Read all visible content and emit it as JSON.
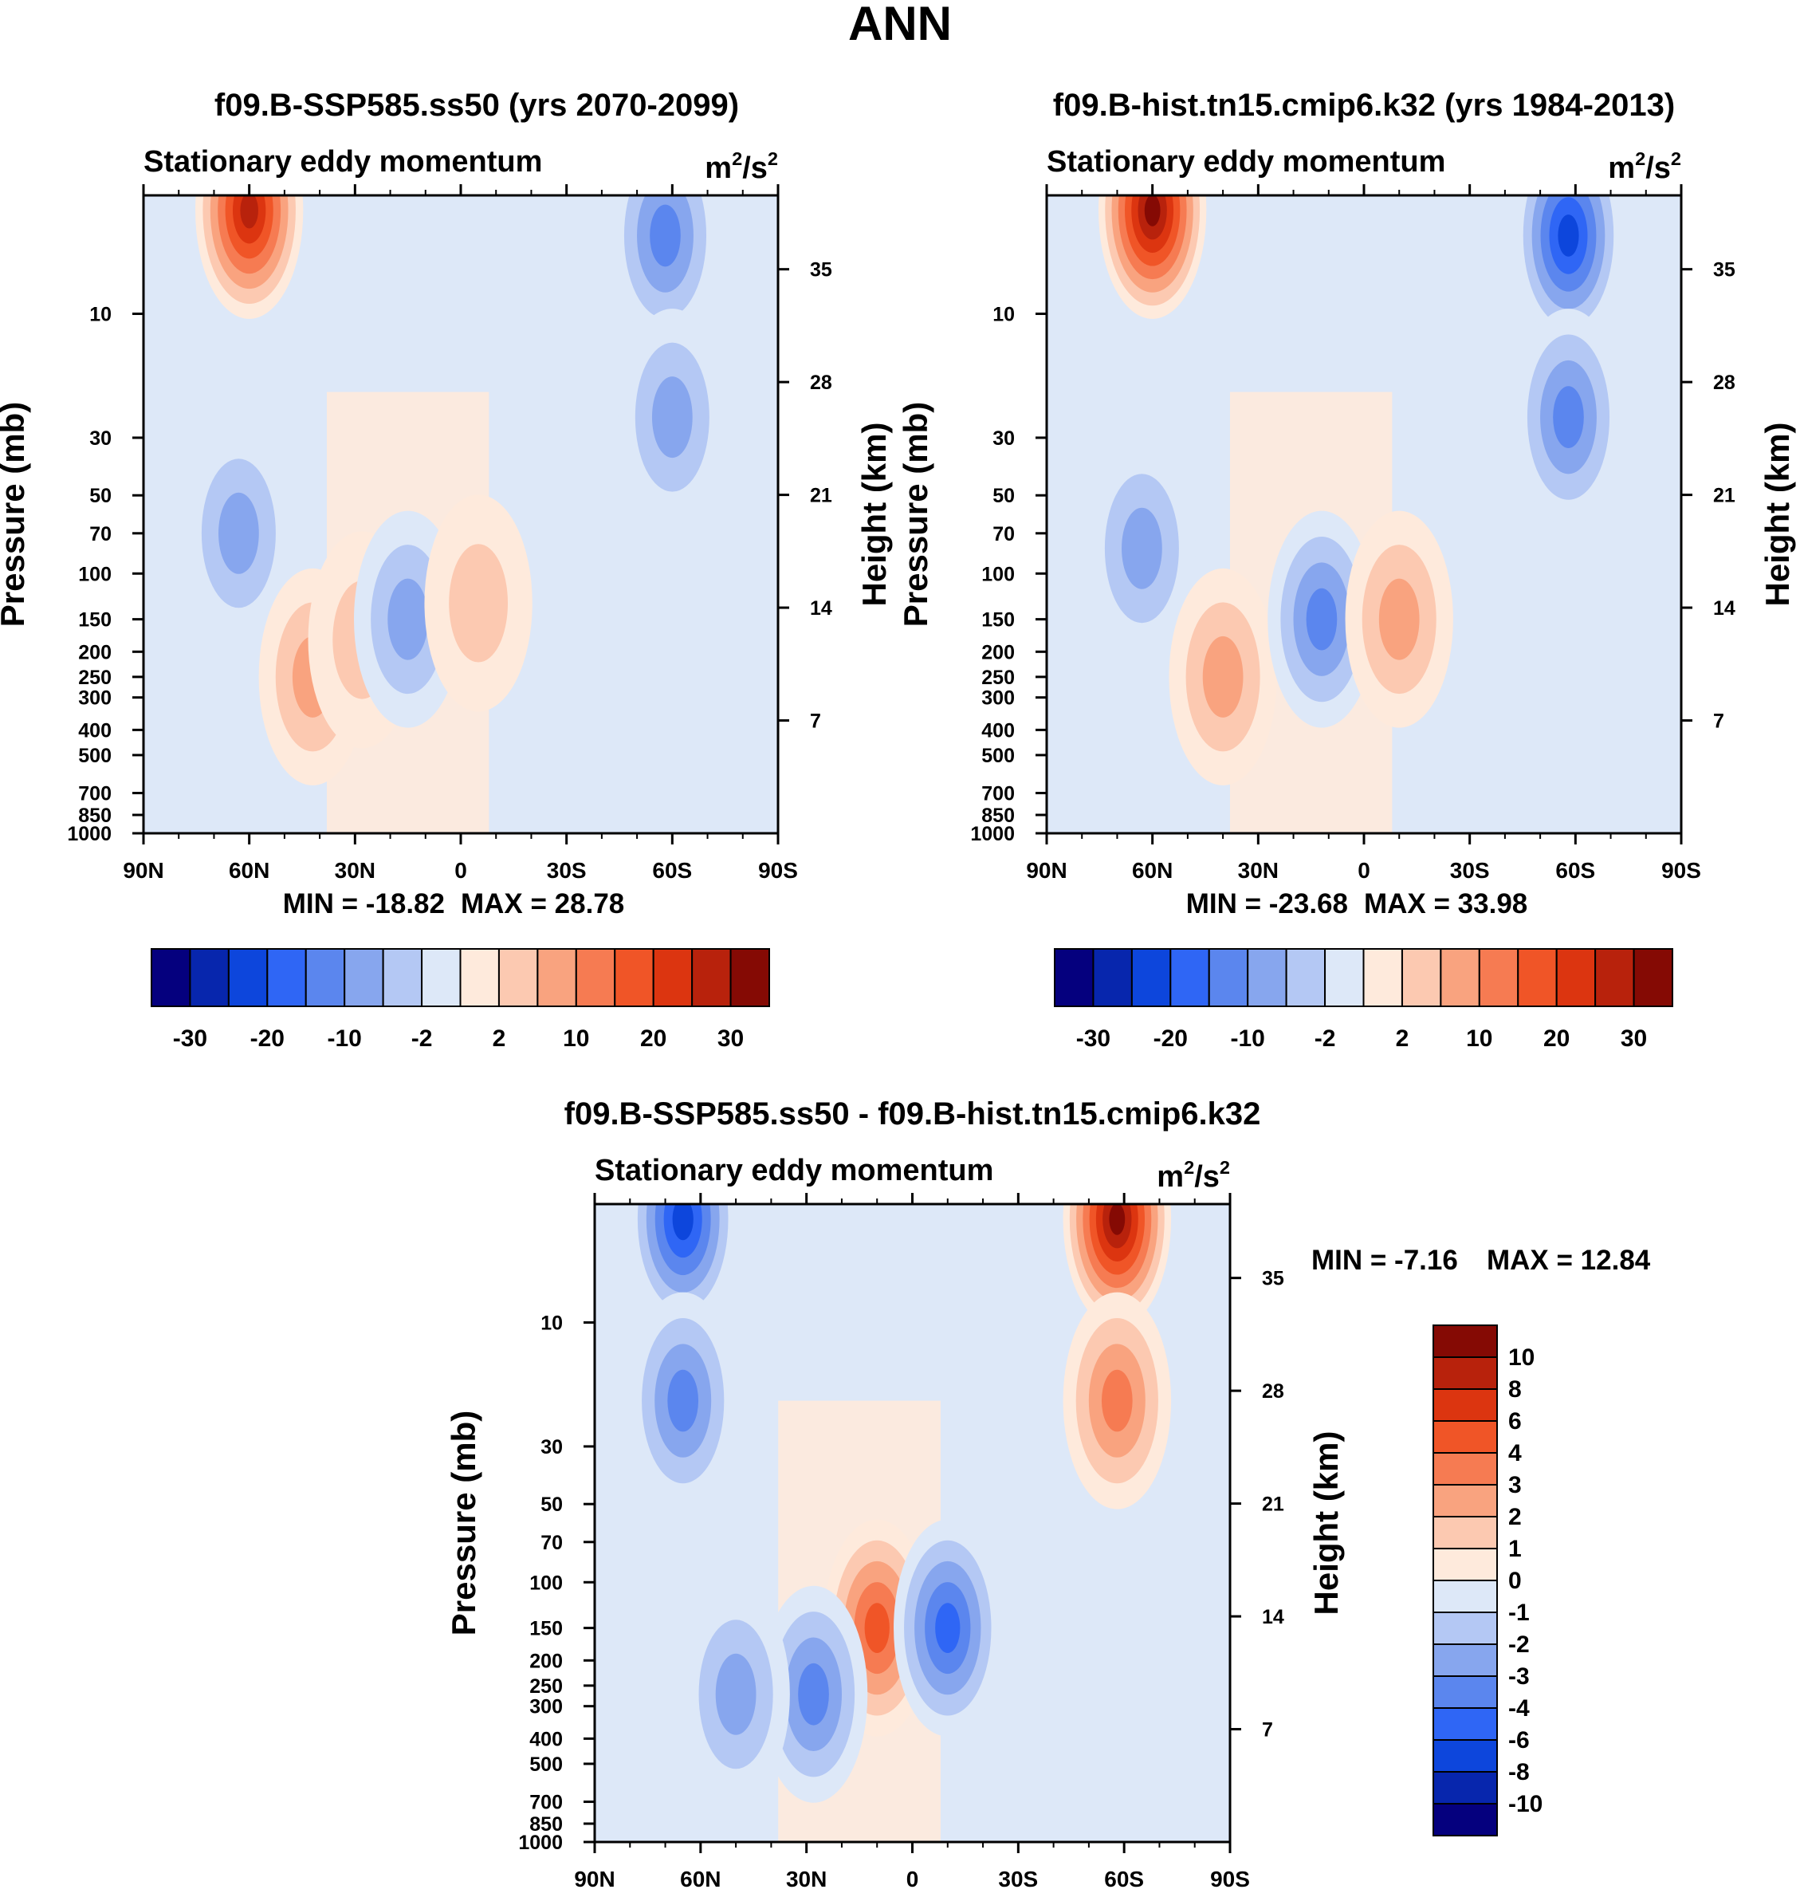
{
  "figure": {
    "title": "ANN"
  },
  "chart_data": [
    {
      "type": "heatmap",
      "id": "panel_future",
      "title": "f09.B-SSP585.ss50 (yrs 2070-2099)",
      "left_label": "Stationary eddy momentum",
      "unit_base": "m",
      "unit_exp1": "2",
      "unit_mid": "/s",
      "unit_exp2": "2",
      "xlabel": "",
      "ylabel": "Pressure (mb)",
      "ylabel_right": "Height (km)",
      "x_ticks": [
        "90N",
        "60N",
        "30N",
        "0",
        "30S",
        "60S",
        "90S"
      ],
      "x_values": [
        90,
        60,
        30,
        0,
        -30,
        -60,
        -90
      ],
      "y_ticks": [
        "10",
        "30",
        "50",
        "70",
        "100",
        "150",
        "200",
        "250",
        "300",
        "400",
        "500",
        "700",
        "850",
        "1000"
      ],
      "y_values": [
        10,
        30,
        50,
        70,
        100,
        150,
        200,
        250,
        300,
        400,
        500,
        700,
        850,
        1000
      ],
      "height_ticks": [
        "35",
        "28",
        "21",
        "14",
        "7"
      ],
      "height_values": [
        35,
        28,
        21,
        14,
        7
      ],
      "ylim": [
        1000,
        3.5
      ],
      "min_label": "MIN = -18.82",
      "max_label": "MAX =  28.78",
      "min": -18.82,
      "max": 28.78,
      "colorbar_labels": [
        "-30",
        "-20",
        "-10",
        "-2",
        "2",
        "10",
        "20",
        "30"
      ],
      "contour_levels": [
        -35,
        -30,
        -25,
        -20,
        -15,
        -10,
        -5,
        -2,
        0,
        2,
        5,
        10,
        15,
        20,
        25,
        30,
        35
      ],
      "features": [
        {
          "lat": 60,
          "p": 4,
          "value": 28.78
        },
        {
          "lat": 63,
          "p": 70,
          "value": -8
        },
        {
          "lat": 42,
          "p": 250,
          "value": 6
        },
        {
          "lat": 28,
          "p": 180,
          "value": 5
        },
        {
          "lat": 15,
          "p": 150,
          "value": -6
        },
        {
          "lat": -5,
          "p": 130,
          "value": 4
        },
        {
          "lat": -58,
          "p": 5,
          "value": -14
        },
        {
          "lat": -60,
          "p": 25,
          "value": -7
        }
      ]
    },
    {
      "type": "heatmap",
      "id": "panel_hist",
      "title": "f09.B-hist.tn15.cmip6.k32 (yrs 1984-2013)",
      "left_label": "Stationary eddy momentum",
      "unit_base": "m",
      "unit_exp1": "2",
      "unit_mid": "/s",
      "unit_exp2": "2",
      "xlabel": "",
      "ylabel": "Pressure (mb)",
      "ylabel_right": "Height (km)",
      "x_ticks": [
        "90N",
        "60N",
        "30N",
        "0",
        "30S",
        "60S",
        "90S"
      ],
      "x_values": [
        90,
        60,
        30,
        0,
        -30,
        -60,
        -90
      ],
      "y_ticks": [
        "10",
        "30",
        "50",
        "70",
        "100",
        "150",
        "200",
        "250",
        "300",
        "400",
        "500",
        "700",
        "850",
        "1000"
      ],
      "y_values": [
        10,
        30,
        50,
        70,
        100,
        150,
        200,
        250,
        300,
        400,
        500,
        700,
        850,
        1000
      ],
      "height_ticks": [
        "35",
        "28",
        "21",
        "14",
        "7"
      ],
      "height_values": [
        35,
        28,
        21,
        14,
        7
      ],
      "ylim": [
        1000,
        3.5
      ],
      "min_label": "MIN = -23.68",
      "max_label": "MAX =  33.98",
      "min": -23.68,
      "max": 33.98,
      "colorbar_labels": [
        "-30",
        "-20",
        "-10",
        "-2",
        "2",
        "10",
        "20",
        "30"
      ],
      "contour_levels": [
        -35,
        -30,
        -25,
        -20,
        -15,
        -10,
        -5,
        -2,
        0,
        2,
        5,
        10,
        15,
        20,
        25,
        30,
        35
      ],
      "features": [
        {
          "lat": 60,
          "p": 4,
          "value": 33.98
        },
        {
          "lat": 63,
          "p": 80,
          "value": -7
        },
        {
          "lat": 40,
          "p": 250,
          "value": 6
        },
        {
          "lat": 12,
          "p": 150,
          "value": -10
        },
        {
          "lat": -10,
          "p": 150,
          "value": 6
        },
        {
          "lat": -58,
          "p": 5,
          "value": -23.68
        },
        {
          "lat": -58,
          "p": 25,
          "value": -10
        }
      ]
    },
    {
      "type": "heatmap",
      "id": "panel_diff",
      "title": "f09.B-SSP585.ss50 - f09.B-hist.tn15.cmip6.k32",
      "left_label": "Stationary eddy momentum",
      "unit_base": "m",
      "unit_exp1": "2",
      "unit_mid": "/s",
      "unit_exp2": "2",
      "xlabel": "",
      "ylabel": "Pressure (mb)",
      "ylabel_right": "Height (km)",
      "x_ticks": [
        "90N",
        "60N",
        "30N",
        "0",
        "30S",
        "60S",
        "90S"
      ],
      "x_values": [
        90,
        60,
        30,
        0,
        -30,
        -60,
        -90
      ],
      "y_ticks": [
        "10",
        "30",
        "50",
        "70",
        "100",
        "150",
        "200",
        "250",
        "300",
        "400",
        "500",
        "700",
        "850",
        "1000"
      ],
      "y_values": [
        10,
        30,
        50,
        70,
        100,
        150,
        200,
        250,
        300,
        400,
        500,
        700,
        850,
        1000
      ],
      "height_ticks": [
        "35",
        "28",
        "21",
        "14",
        "7"
      ],
      "height_values": [
        35,
        28,
        21,
        14,
        7
      ],
      "ylim": [
        1000,
        3.5
      ],
      "min_label": "MIN =  -7.16",
      "max_label": "MAX =  12.84",
      "min": -7.16,
      "max": 12.84,
      "colorbar_labels": [
        "10",
        "8",
        "6",
        "4",
        "3",
        "2",
        "1",
        "0",
        "-1",
        "-2",
        "-3",
        "-4",
        "-6",
        "-8",
        "-10"
      ],
      "contour_levels": [
        -12,
        -10,
        -8,
        -6,
        -4,
        -3,
        -2,
        -1,
        0,
        1,
        2,
        3,
        4,
        6,
        8,
        10,
        12
      ],
      "features": [
        {
          "lat": 65,
          "p": 4,
          "value": -7.16
        },
        {
          "lat": 65,
          "p": 20,
          "value": -3
        },
        {
          "lat": 10,
          "p": 150,
          "value": 6
        },
        {
          "lat": -10,
          "p": 150,
          "value": -5
        },
        {
          "lat": 28,
          "p": 270,
          "value": -3
        },
        {
          "lat": 50,
          "p": 270,
          "value": -2
        },
        {
          "lat": -58,
          "p": 4,
          "value": 12.84
        },
        {
          "lat": -58,
          "p": 20,
          "value": 4
        }
      ]
    }
  ],
  "colors": {
    "palette": [
      "#05007e",
      "#0726ad",
      "#0d46dc",
      "#2f66f5",
      "#5b86ee",
      "#87a6ee",
      "#b4c8f4",
      "#dde8f8",
      "#feeadc",
      "#fcc9b1",
      "#f9a37f",
      "#f67b52",
      "#f05527",
      "#dc3510",
      "#b8220c",
      "#850a04"
    ]
  }
}
